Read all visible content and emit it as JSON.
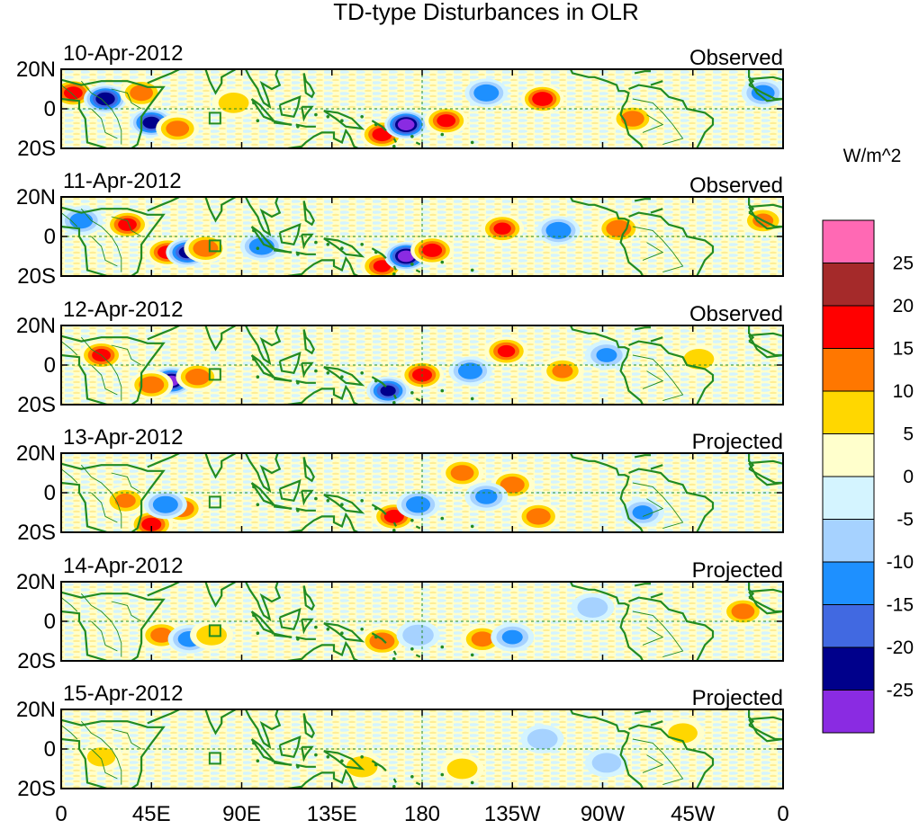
{
  "chart_data": {
    "type": "heatmap",
    "title": "TD-type Disturbances in OLR",
    "units": "W/m^2",
    "colorbar": {
      "labels": [
        "25",
        "20",
        "15",
        "10",
        "5",
        "0",
        "-5",
        "-10",
        "-15",
        "-20",
        "-25"
      ],
      "bins_top_to_bottom": [
        {
          "range": "> 25",
          "color": "#ff69b4"
        },
        {
          "range": "20 to 25",
          "color": "#a52a2a"
        },
        {
          "range": "15 to 20",
          "color": "#ff0000"
        },
        {
          "range": "10 to 15",
          "color": "#ff7700"
        },
        {
          "range": "5 to 10",
          "color": "#ffd700"
        },
        {
          "range": "0 to 5",
          "color": "#ffffcc"
        },
        {
          "range": "-5 to 0",
          "color": "#d4f4ff"
        },
        {
          "range": "-10 to -5",
          "color": "#a6d2ff"
        },
        {
          "range": "-15 to -10",
          "color": "#1e90ff"
        },
        {
          "range": "-20 to -15",
          "color": "#4169e1"
        },
        {
          "range": "-25 to -20",
          "color": "#00008b"
        },
        {
          "range": "< -25",
          "color": "#8a2be2"
        }
      ]
    },
    "x_ticks": [
      "0",
      "45E",
      "90E",
      "135E",
      "180",
      "135W",
      "90W",
      "45W",
      "0"
    ],
    "x_tick_values": [
      0,
      45,
      90,
      135,
      180,
      225,
      270,
      315,
      360
    ],
    "y_ticks": [
      "20N",
      "0",
      "20S"
    ],
    "y_tick_values": [
      20,
      0,
      -20
    ],
    "xlim": [
      0,
      360
    ],
    "ylim": [
      -20,
      20
    ],
    "panels": [
      {
        "date": "10-Apr-2012",
        "status": "Observed",
        "blobs": [
          {
            "lon": 6,
            "lat": 8,
            "val": 16
          },
          {
            "lon": 22,
            "lat": 5,
            "val": -24
          },
          {
            "lon": 40,
            "lat": 8,
            "val": 12
          },
          {
            "lon": 45,
            "lat": -7,
            "val": -22
          },
          {
            "lon": 58,
            "lat": -10,
            "val": 12
          },
          {
            "lon": 86,
            "lat": 3,
            "val": 8
          },
          {
            "lon": 160,
            "lat": -13,
            "val": 17
          },
          {
            "lon": 172,
            "lat": -8,
            "val": -28
          },
          {
            "lon": 192,
            "lat": -6,
            "val": 16
          },
          {
            "lon": 240,
            "lat": 5,
            "val": 18
          },
          {
            "lon": 212,
            "lat": 8,
            "val": -14
          },
          {
            "lon": 285,
            "lat": -5,
            "val": 12
          },
          {
            "lon": 350,
            "lat": 8,
            "val": -12
          }
        ]
      },
      {
        "date": "11-Apr-2012",
        "status": "Observed",
        "blobs": [
          {
            "lon": 10,
            "lat": 8,
            "val": -12
          },
          {
            "lon": 33,
            "lat": 6,
            "val": 16
          },
          {
            "lon": 53,
            "lat": -8,
            "val": 17
          },
          {
            "lon": 63,
            "lat": -8,
            "val": -22
          },
          {
            "lon": 72,
            "lat": -6,
            "val": 14
          },
          {
            "lon": 100,
            "lat": -5,
            "val": -14
          },
          {
            "lon": 160,
            "lat": -15,
            "val": 15
          },
          {
            "lon": 172,
            "lat": -10,
            "val": -28
          },
          {
            "lon": 185,
            "lat": -7,
            "val": 17
          },
          {
            "lon": 220,
            "lat": 4,
            "val": 15
          },
          {
            "lon": 248,
            "lat": 3,
            "val": -14
          },
          {
            "lon": 278,
            "lat": 4,
            "val": 14
          },
          {
            "lon": 350,
            "lat": 8,
            "val": 10
          }
        ]
      },
      {
        "date": "12-Apr-2012",
        "status": "Observed",
        "blobs": [
          {
            "lon": 20,
            "lat": 5,
            "val": 16
          },
          {
            "lon": 55,
            "lat": -8,
            "val": -26
          },
          {
            "lon": 68,
            "lat": -6,
            "val": 13
          },
          {
            "lon": 45,
            "lat": -10,
            "val": 14
          },
          {
            "lon": 163,
            "lat": -13,
            "val": -20
          },
          {
            "lon": 180,
            "lat": -5,
            "val": 17
          },
          {
            "lon": 204,
            "lat": -3,
            "val": -13
          },
          {
            "lon": 222,
            "lat": 7,
            "val": 15
          },
          {
            "lon": 250,
            "lat": -3,
            "val": 10
          },
          {
            "lon": 272,
            "lat": 5,
            "val": -10
          },
          {
            "lon": 318,
            "lat": 3,
            "val": 8
          }
        ]
      },
      {
        "date": "13-Apr-2012",
        "status": "Projected",
        "blobs": [
          {
            "lon": 32,
            "lat": -4,
            "val": 10
          },
          {
            "lon": 45,
            "lat": -16,
            "val": 17
          },
          {
            "lon": 60,
            "lat": -8,
            "val": 14
          },
          {
            "lon": 52,
            "lat": -6,
            "val": -14
          },
          {
            "lon": 166,
            "lat": -12,
            "val": 17
          },
          {
            "lon": 178,
            "lat": -6,
            "val": -13
          },
          {
            "lon": 200,
            "lat": 10,
            "val": 12
          },
          {
            "lon": 225,
            "lat": 4,
            "val": 13
          },
          {
            "lon": 212,
            "lat": -2,
            "val": -11
          },
          {
            "lon": 238,
            "lat": -12,
            "val": 13
          },
          {
            "lon": 290,
            "lat": -10,
            "val": -10
          }
        ]
      },
      {
        "date": "14-Apr-2012",
        "status": "Projected",
        "blobs": [
          {
            "lon": 50,
            "lat": -7,
            "val": 11
          },
          {
            "lon": 64,
            "lat": -9,
            "val": -12
          },
          {
            "lon": 75,
            "lat": -7,
            "val": 8
          },
          {
            "lon": 160,
            "lat": -10,
            "val": 14
          },
          {
            "lon": 178,
            "lat": -7,
            "val": -9
          },
          {
            "lon": 210,
            "lat": -9,
            "val": 11
          },
          {
            "lon": 225,
            "lat": -8,
            "val": -10
          },
          {
            "lon": 340,
            "lat": 5,
            "val": 12
          },
          {
            "lon": 265,
            "lat": 7,
            "val": -8
          }
        ]
      },
      {
        "date": "15-Apr-2012",
        "status": "Projected",
        "blobs": [
          {
            "lon": 20,
            "lat": -4,
            "val": 6
          },
          {
            "lon": 150,
            "lat": -9,
            "val": 9
          },
          {
            "lon": 200,
            "lat": -10,
            "val": 8
          },
          {
            "lon": 240,
            "lat": 5,
            "val": -8
          },
          {
            "lon": 310,
            "lat": 8,
            "val": 7
          },
          {
            "lon": 272,
            "lat": -7,
            "val": -7
          }
        ]
      }
    ]
  }
}
